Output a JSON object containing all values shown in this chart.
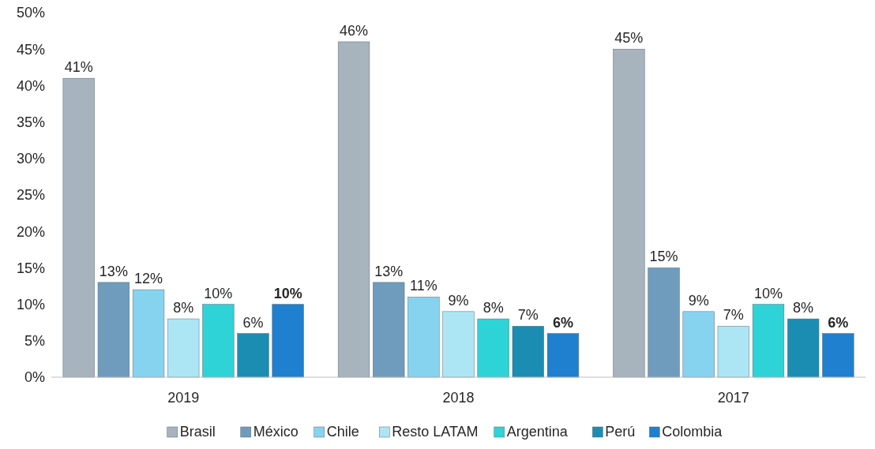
{
  "chart_data": {
    "type": "bar",
    "categories": [
      "2019",
      "2018",
      "2017"
    ],
    "series": [
      {
        "name": "Brasil",
        "color": "#a7b3bd",
        "values": [
          41,
          46,
          45
        ],
        "value_labels": [
          "41%",
          "46%",
          "45%"
        ]
      },
      {
        "name": "México",
        "color": "#6f9bbd",
        "values": [
          13,
          13,
          15
        ],
        "value_labels": [
          "13%",
          "13%",
          "15%"
        ]
      },
      {
        "name": "Chile",
        "color": "#86d3f0",
        "values": [
          12,
          11,
          9
        ],
        "value_labels": [
          "12%",
          "11%",
          "9%"
        ]
      },
      {
        "name": "Resto LATAM",
        "color": "#ace6f4",
        "values": [
          8,
          9,
          7
        ],
        "value_labels": [
          "8%",
          "9%",
          "7%"
        ]
      },
      {
        "name": "Argentina",
        "color": "#2dd3d6",
        "values": [
          10,
          8,
          10
        ],
        "value_labels": [
          "10%",
          "8%",
          "10%"
        ]
      },
      {
        "name": "Perú",
        "color": "#1b8db3",
        "values": [
          6,
          7,
          8
        ],
        "value_labels": [
          "6%",
          "7%",
          "8%"
        ]
      },
      {
        "name": "Colombia",
        "color": "#1f80cf",
        "values": [
          10,
          6,
          6
        ],
        "value_labels": [
          "10%",
          "6%",
          "6%"
        ]
      }
    ],
    "ylim": [
      0,
      50
    ],
    "yticks": [
      {
        "value": 0,
        "label": "0%"
      },
      {
        "value": 5,
        "label": "5%"
      },
      {
        "value": 10,
        "label": "10%"
      },
      {
        "value": 15,
        "label": "15%"
      },
      {
        "value": 20,
        "label": "20%"
      },
      {
        "value": 25,
        "label": "25%"
      },
      {
        "value": 30,
        "label": "30%"
      },
      {
        "value": 35,
        "label": "35%"
      },
      {
        "value": 40,
        "label": "40%"
      },
      {
        "value": 45,
        "label": "45%"
      },
      {
        "value": 50,
        "label": "50%"
      }
    ],
    "legend": "bottom",
    "grid": false
  }
}
